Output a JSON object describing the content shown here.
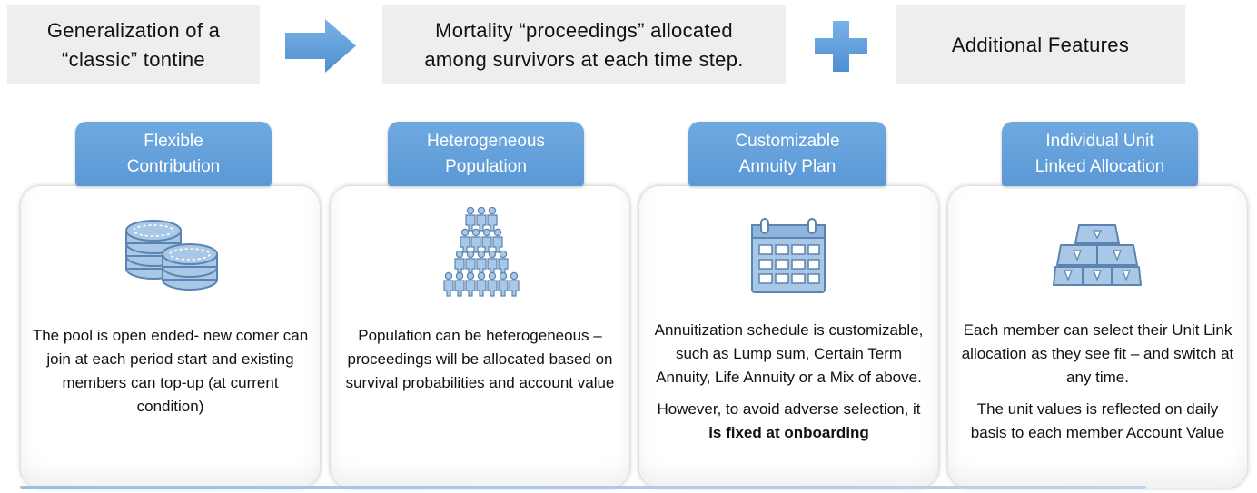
{
  "header": {
    "box1": "Generalization of a\n“classic” tontine",
    "box2": "Mortality “proceedings” allocated\namong survivors at each time step.",
    "box3": "Additional Features"
  },
  "colors": {
    "accent": "#5b9bd5",
    "icon": "#a9c7e6",
    "box": "#eeeeee"
  },
  "icons": [
    "arrow-right-icon",
    "plus-icon",
    "coins-icon",
    "people-pyramid-icon",
    "calendar-icon",
    "gold-bars-icon"
  ],
  "features": [
    {
      "title": "Flexible\nContribution",
      "paragraphs": [
        "The pool is open ended- new comer can join at each period start and existing members can top-up (at current condition)"
      ]
    },
    {
      "title": "Heterogeneous\nPopulation",
      "paragraphs": [
        "Population can be heterogeneous – proceedings will be allocated based on survival probabilities and account value"
      ]
    },
    {
      "title": "Customizable\nAnnuity Plan",
      "paragraphs": [
        "Annuitization schedule is customizable, such as Lump sum, Certain Term Annuity, Life Annuity or a Mix of above."
      ],
      "p2_prefix": "However, to avoid adverse selection, it ",
      "p2_bold": "is fixed at onboarding"
    },
    {
      "title": "Individual Unit\nLinked Allocation",
      "paragraphs": [
        "Each member can select their Unit Link allocation as they see fit – and switch at any time.",
        "The unit values is reflected on daily basis to each member Account Value"
      ]
    }
  ]
}
